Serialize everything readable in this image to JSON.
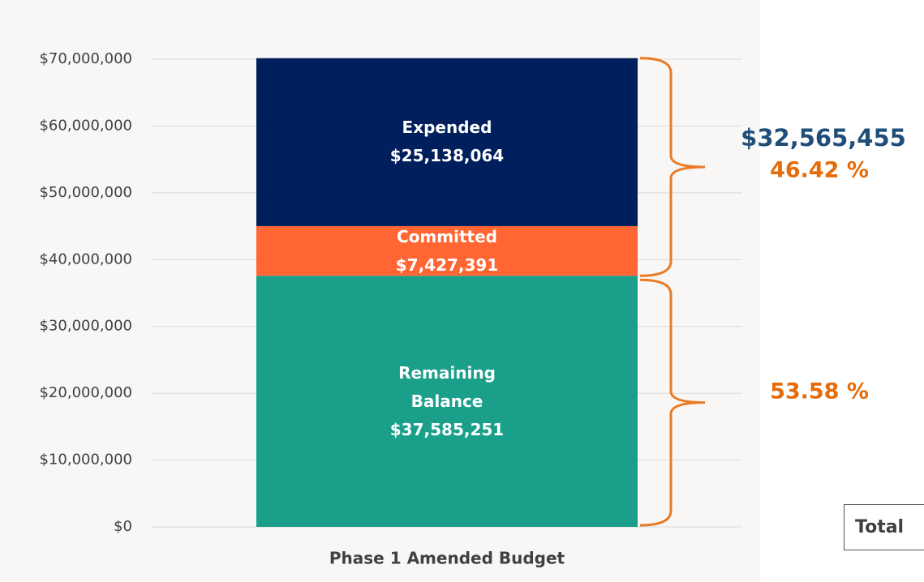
{
  "chart_data": {
    "type": "stacked_bar",
    "categories": [
      "Phase 1 Amended Budget"
    ],
    "series": [
      {
        "name": "Remaining Balance",
        "color": "#1aa08a",
        "values": [
          37585251
        ],
        "value_labels": [
          "$37,585,251"
        ]
      },
      {
        "name": "Committed",
        "color": "#ff6633",
        "values": [
          7427391
        ],
        "value_labels": [
          "$7,427,391"
        ]
      },
      {
        "name": "Expended",
        "color": "#001f5c",
        "values": [
          25138064
        ],
        "value_labels": [
          "$25,138,064"
        ]
      }
    ],
    "ylim": [
      0,
      70000000
    ],
    "yticks": [
      {
        "value": 0,
        "label": "$0"
      },
      {
        "value": 10000000,
        "label": "$10,000,000"
      },
      {
        "value": 20000000,
        "label": "$20,000,000"
      },
      {
        "value": 30000000,
        "label": "$30,000,000"
      },
      {
        "value": 40000000,
        "label": "$40,000,000"
      },
      {
        "value": 50000000,
        "label": "$50,000,000"
      },
      {
        "value": 60000000,
        "label": "$60,000,000"
      },
      {
        "value": 70000000,
        "label": "$70,000,000"
      }
    ],
    "grid": true,
    "annotations": {
      "spent_total": "$32,565,455",
      "spent_percent": "46.42 %",
      "remaining_percent": "53.58 %",
      "total": "Total"
    }
  }
}
